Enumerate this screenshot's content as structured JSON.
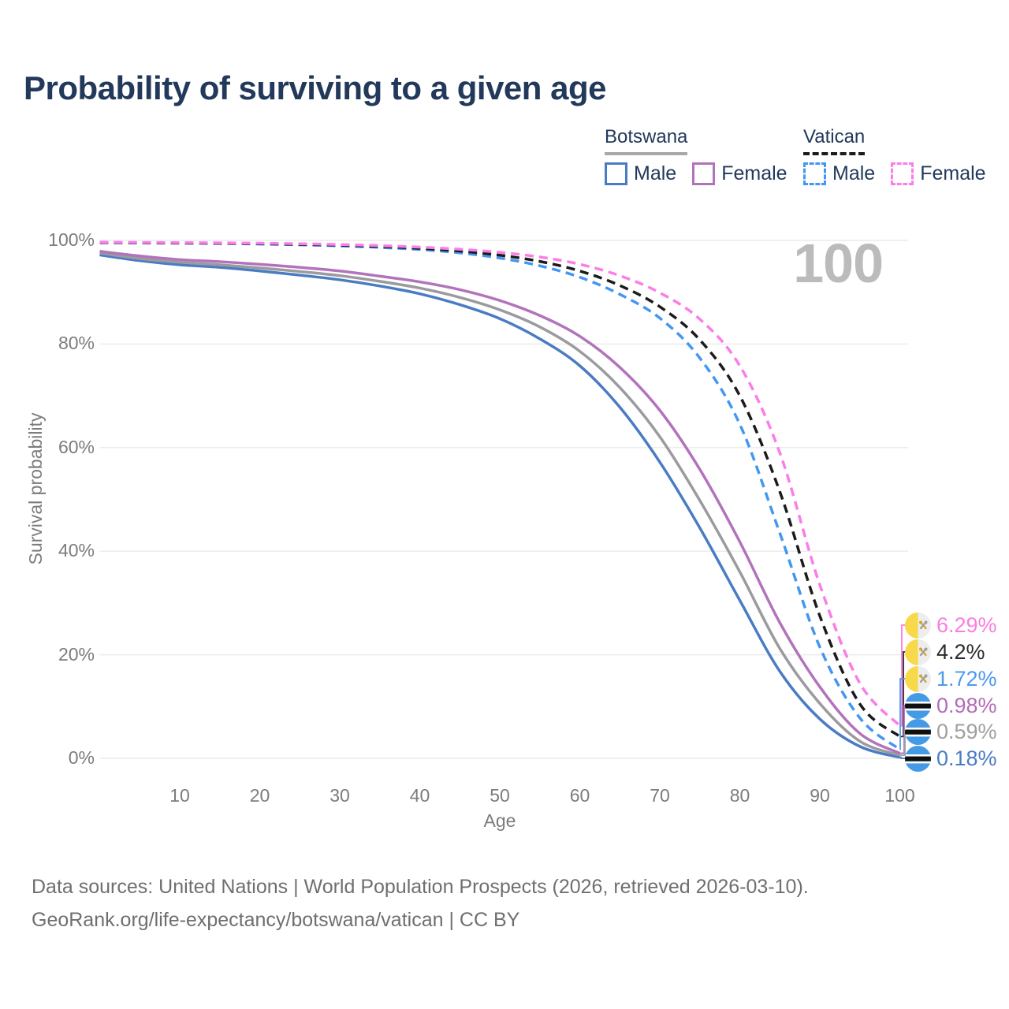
{
  "title": "Probability of surviving to a given age",
  "watermark_age": "100",
  "legend": {
    "groups": [
      {
        "name": "Botswana",
        "line_style": "solid",
        "line_color": "#A8A8A8",
        "items": [
          {
            "label": "Male",
            "color": "#4A7CC4",
            "dashed": false
          },
          {
            "label": "Female",
            "color": "#B273BC",
            "dashed": false
          }
        ]
      },
      {
        "name": "Vatican",
        "line_style": "dashed",
        "line_color": "#1B1B1B",
        "items": [
          {
            "label": "Male",
            "color": "#4397F2",
            "dashed": true
          },
          {
            "label": "Female",
            "color": "#FB7DE8",
            "dashed": true
          }
        ]
      }
    ]
  },
  "axes": {
    "y_title": "Survival probability",
    "x_title": "Age",
    "y_ticks": [
      "100%",
      "80%",
      "60%",
      "40%",
      "20%",
      "0%"
    ],
    "x_ticks": [
      "10",
      "20",
      "30",
      "40",
      "50",
      "60",
      "70",
      "80",
      "90",
      "100"
    ]
  },
  "end_labels": [
    {
      "country": "vatican",
      "label": "6.29%",
      "value": 6.29,
      "color": "#FA7EE0"
    },
    {
      "country": "vatican",
      "label": "4.2%",
      "value": 4.2,
      "color": "#2B2B2B"
    },
    {
      "country": "vatican",
      "label": "1.72%",
      "value": 1.72,
      "color": "#4C99EE"
    },
    {
      "country": "botswana",
      "label": "0.98%",
      "value": 0.98,
      "color": "#B36CB8"
    },
    {
      "country": "botswana",
      "label": "0.59%",
      "value": 0.59,
      "color": "#9F9F9F"
    },
    {
      "country": "botswana",
      "label": "0.18%",
      "value": 0.18,
      "color": "#4A7CC4"
    }
  ],
  "footer": {
    "line1": "Data sources: United Nations | World Population Prospects (2026, retrieved 2026-03-10).",
    "line2": "GeoRank.org/life-expectancy/botswana/vatican | CC BY"
  },
  "chart_data": {
    "type": "line",
    "title": "Probability of surviving to a given age",
    "xlabel": "Age",
    "ylabel": "Survival probability",
    "xlim": [
      0,
      100
    ],
    "ylim": [
      0,
      100
    ],
    "grid": "horizontal",
    "legend_position": "top-right",
    "x": [
      0,
      5,
      10,
      15,
      20,
      25,
      30,
      35,
      40,
      45,
      50,
      55,
      60,
      65,
      70,
      75,
      80,
      85,
      90,
      95,
      100
    ],
    "series": [
      {
        "name": "Botswana Male",
        "style": "solid",
        "color": "#4A7CC4",
        "end_label": "0.18%",
        "values": [
          97.2,
          96.1,
          95.3,
          94.8,
          94.1,
          93.3,
          92.4,
          91.2,
          89.7,
          87.6,
          84.9,
          81.0,
          75.8,
          67.8,
          57.2,
          44.5,
          30.5,
          16.8,
          7.6,
          2.3,
          0.18
        ]
      },
      {
        "name": "Botswana Both sexes",
        "style": "solid",
        "color": "#9B9B9F",
        "end_label": "0.59%",
        "values": [
          97.6,
          96.5,
          95.8,
          95.3,
          94.7,
          94.0,
          93.2,
          92.1,
          90.8,
          89.0,
          86.6,
          83.3,
          78.6,
          71.6,
          62.1,
          49.8,
          36.0,
          21.2,
          10.6,
          3.3,
          0.59
        ]
      },
      {
        "name": "Botswana Female",
        "style": "solid",
        "color": "#B273BC",
        "end_label": "0.98%",
        "values": [
          97.9,
          97.0,
          96.3,
          95.9,
          95.4,
          94.8,
          94.1,
          93.1,
          92.0,
          90.5,
          88.4,
          85.5,
          81.5,
          75.5,
          67.2,
          55.8,
          41.8,
          26.2,
          13.8,
          4.8,
          0.98
        ]
      },
      {
        "name": "Vatican Male",
        "style": "dashed",
        "color": "#4397F2",
        "end_label": "1.72%",
        "values": [
          99.55,
          99.5,
          99.45,
          99.4,
          99.3,
          99.15,
          98.95,
          98.65,
          98.25,
          97.6,
          96.6,
          95.1,
          92.9,
          89.6,
          85.0,
          77.3,
          64.5,
          43.5,
          21.5,
          7.8,
          1.72
        ]
      },
      {
        "name": "Vatican Both sexes",
        "style": "dashed",
        "color": "#1B1B1B",
        "end_label": "4.2%",
        "values": [
          99.6,
          99.55,
          99.5,
          99.46,
          99.38,
          99.25,
          99.08,
          98.82,
          98.48,
          97.95,
          97.15,
          95.95,
          94.1,
          91.3,
          87.2,
          80.8,
          70.0,
          51.5,
          27.5,
          10.5,
          4.2
        ]
      },
      {
        "name": "Vatican Female",
        "style": "dashed",
        "color": "#FB7DE8",
        "end_label": "6.29%",
        "values": [
          99.65,
          99.61,
          99.57,
          99.53,
          99.46,
          99.36,
          99.2,
          99.0,
          98.7,
          98.3,
          97.7,
          96.8,
          95.4,
          93.2,
          89.9,
          84.8,
          75.8,
          59.0,
          33.5,
          14.5,
          6.29
        ]
      }
    ]
  }
}
